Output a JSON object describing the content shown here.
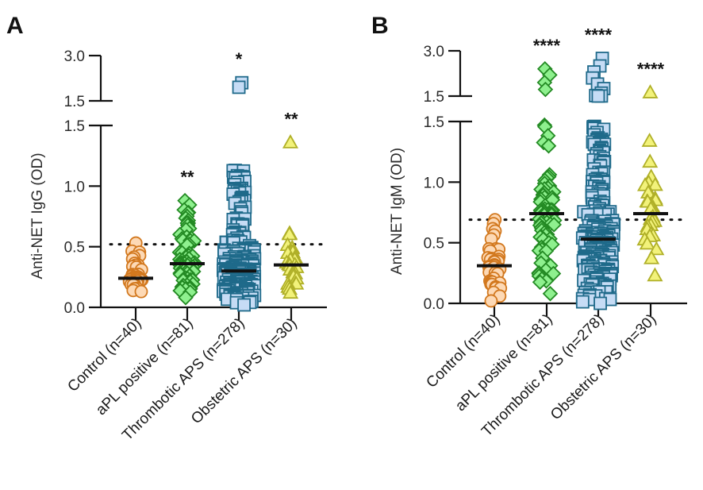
{
  "chart_data": [
    {
      "panel": "A",
      "type": "scatter",
      "subtype": "dot-plot-with-median",
      "ylabel": "Anti-NET IgG (OD)",
      "y_axis": {
        "broken": true,
        "lower_segment": {
          "range": [
            0,
            1.5
          ],
          "ticks": [
            "0.0",
            "0.5",
            "1.0",
            "1.5"
          ]
        },
        "upper_segment": {
          "range": [
            1.5,
            3.0
          ],
          "ticks": [
            "1.5",
            "3.0"
          ]
        }
      },
      "cutoff_line": 0.52,
      "categories": [
        "Control (n=40)",
        "aPL positive (n=81)",
        "Thrombotic APS (n=278)",
        "Obstetric APS (n=30)"
      ],
      "groups": [
        {
          "name": "Control",
          "n": 40,
          "median": 0.24,
          "min": 0.13,
          "max": 0.53,
          "upper_outliers": [],
          "significance": ""
        },
        {
          "name": "aPL positive",
          "n": 81,
          "median": 0.36,
          "min": 0.08,
          "max": 0.88,
          "upper_outliers": [],
          "significance": "**"
        },
        {
          "name": "Thrombotic APS",
          "n": 278,
          "median": 0.3,
          "min": 0.02,
          "max": 1.13,
          "upper_outliers": [
            1.95,
            2.1
          ],
          "significance": "*"
        },
        {
          "name": "Obstetric APS",
          "n": 30,
          "median": 0.35,
          "min": 0.12,
          "max": 0.61,
          "upper_outliers": [
            1.36
          ],
          "significance": "**"
        }
      ]
    },
    {
      "panel": "B",
      "type": "scatter",
      "subtype": "dot-plot-with-median",
      "ylabel": "Anti-NET IgM (OD)",
      "y_axis": {
        "broken": true,
        "lower_segment": {
          "range": [
            0,
            1.5
          ],
          "ticks": [
            "0.0",
            "0.5",
            "1.0",
            "1.5"
          ]
        },
        "upper_segment": {
          "range": [
            1.5,
            3.0
          ],
          "ticks": [
            "1.5",
            "3.0"
          ]
        }
      },
      "cutoff_line": 0.69,
      "categories": [
        "Control (n=40)",
        "aPL positive (n=81)",
        "Thrombotic APS (n=278)",
        "Obstetric APS (n=30)"
      ],
      "groups": [
        {
          "name": "Control",
          "n": 40,
          "median": 0.31,
          "min": 0.02,
          "max": 0.69,
          "upper_outliers": [],
          "significance": ""
        },
        {
          "name": "aPL positive",
          "n": 81,
          "median": 0.74,
          "min": 0.08,
          "max": 1.47,
          "upper_outliers": [
            1.72,
            1.95,
            2.2,
            2.4
          ],
          "significance": "****"
        },
        {
          "name": "Thrombotic APS",
          "n": 278,
          "median": 0.53,
          "min": 0.0,
          "max": 1.52,
          "upper_outliers": [
            1.6,
            1.75,
            1.9,
            2.1,
            2.3,
            2.5,
            2.75
          ],
          "significance": "****"
        },
        {
          "name": "Obstetric APS",
          "n": 30,
          "median": 0.74,
          "min": 0.23,
          "max": 1.34,
          "upper_outliers": [
            1.62
          ],
          "significance": "****"
        }
      ]
    }
  ],
  "labels": {
    "panel_a": "A",
    "panel_b": "B",
    "ylabel_a": "Anti-NET IgG (OD)",
    "ylabel_b": "Anti-NET IgM (OD)",
    "categories": [
      "Control (n=40)",
      "aPL positive (n=81)",
      "Thrombotic APS (n=278)",
      "Obstetric APS (n=30)"
    ]
  },
  "styles": {
    "series_colors": [
      {
        "stroke": "#d2781e",
        "fill": "#fdd9b5",
        "marker": "circle"
      },
      {
        "stroke": "#238a23",
        "fill": "#8ef08e",
        "marker": "diamond"
      },
      {
        "stroke": "#1f6a8a",
        "fill": "#c6dcf5",
        "marker": "square"
      },
      {
        "stroke": "#b0b028",
        "fill": "#f2f27a",
        "marker": "triangle"
      }
    ]
  }
}
